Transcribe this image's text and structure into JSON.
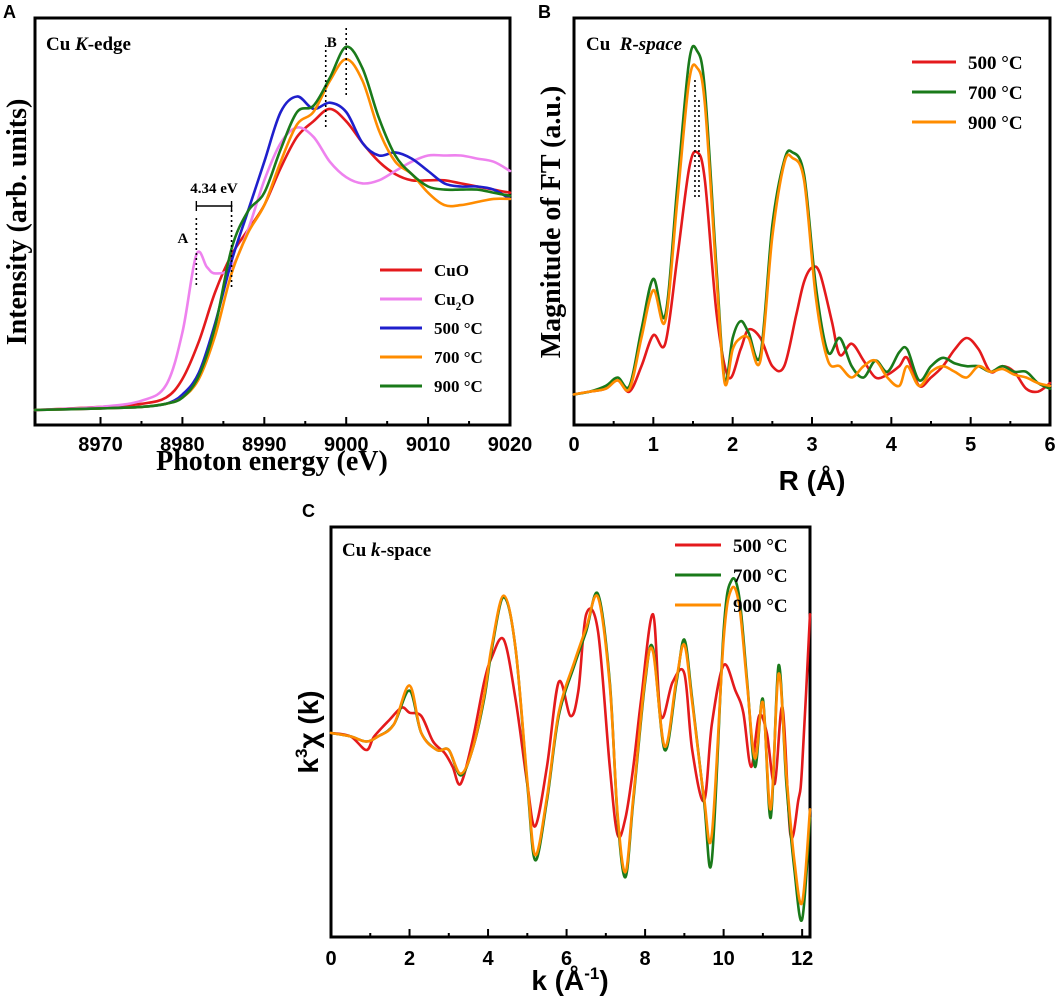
{
  "colors": {
    "red": "#e41a1c",
    "pink": "#ee82ee",
    "blue": "#1f1fcc",
    "orange": "#ff8c00",
    "green": "#1a7a1a"
  },
  "chart_data": [
    {
      "id": "A",
      "panel_label": "A",
      "type": "line",
      "title": "Cu K-edge",
      "title_prefix": "Cu ",
      "title_italic": "K",
      "title_suffix": "-edge",
      "xlabel": "Photon energy (eV)",
      "ylabel": "Intensity (arb. units)",
      "xlim": [
        8962,
        9020
      ],
      "ylim": [
        0,
        1.25
      ],
      "xticks": [
        8970,
        8980,
        8990,
        9000,
        9010,
        9020
      ],
      "xtick_labels": [
        "8970",
        "8980",
        "8990",
        "9000",
        "9010",
        "9020"
      ],
      "legend_position": "bottom-right",
      "annotations": {
        "gap_label": "4.34 eV",
        "peak_a_label": "A",
        "peak_b_label": "B",
        "peak_a_x": 8981.7,
        "edge_x": 8986.0,
        "peak_b_x1": 8997.5,
        "peak_b_x2": 9000.0
      },
      "series": [
        {
          "name": "CuO",
          "name_base": "CuO",
          "name_sub": "",
          "name_after": "",
          "color": "red",
          "x": [
            8962,
            8970,
            8975,
            8978,
            8980,
            8982,
            8984,
            8986,
            8988,
            8990,
            8992,
            8994,
            8996,
            8998,
            9000,
            9002,
            9004,
            9006,
            9008,
            9010,
            9012,
            9014,
            9016,
            9018,
            9020
          ],
          "y": [
            0.0,
            0.01,
            0.02,
            0.04,
            0.1,
            0.22,
            0.38,
            0.5,
            0.58,
            0.66,
            0.78,
            0.88,
            0.93,
            0.97,
            0.93,
            0.86,
            0.8,
            0.76,
            0.74,
            0.74,
            0.74,
            0.73,
            0.72,
            0.71,
            0.7
          ]
        },
        {
          "name": "Cu2O",
          "name_base": "Cu",
          "name_sub": "2",
          "name_after": "O",
          "color": "pink",
          "x": [
            8962,
            8970,
            8975,
            8978,
            8980,
            8981.7,
            8983,
            8984,
            8986,
            8988,
            8990,
            8992,
            8994,
            8996,
            8998,
            9000,
            9002,
            9004,
            9006,
            9008,
            9010,
            9012,
            9014,
            9016,
            9018,
            9020
          ],
          "y": [
            0.0,
            0.01,
            0.03,
            0.08,
            0.25,
            0.5,
            0.46,
            0.44,
            0.46,
            0.58,
            0.74,
            0.86,
            0.91,
            0.88,
            0.8,
            0.75,
            0.73,
            0.74,
            0.77,
            0.8,
            0.82,
            0.82,
            0.82,
            0.81,
            0.8,
            0.77
          ]
        },
        {
          "name": "500 °C",
          "name_base": "500 °C",
          "name_sub": "",
          "name_after": "",
          "color": "blue",
          "x": [
            8962,
            8970,
            8975,
            8978,
            8980,
            8982,
            8984,
            8986,
            8988,
            8990,
            8992,
            8994,
            8996,
            8998,
            9000,
            9002,
            9004,
            9006,
            9008,
            9010,
            9012,
            9014,
            9016,
            9018,
            9020
          ],
          "y": [
            0.0,
            0.005,
            0.01,
            0.02,
            0.05,
            0.12,
            0.28,
            0.48,
            0.64,
            0.8,
            0.96,
            1.01,
            0.97,
            0.99,
            0.96,
            0.86,
            0.82,
            0.83,
            0.81,
            0.77,
            0.73,
            0.72,
            0.72,
            0.71,
            0.68
          ]
        },
        {
          "name": "700 °C",
          "name_base": "700 °C",
          "name_sub": "",
          "name_after": "",
          "color": "orange",
          "x": [
            8962,
            8970,
            8975,
            8978,
            8980,
            8982,
            8984,
            8986,
            8988,
            8990,
            8992,
            8994,
            8996,
            8998,
            9000,
            9002,
            9004,
            9006,
            9008,
            9010,
            9012,
            9014,
            9016,
            9018,
            9020
          ],
          "y": [
            0.0,
            0.005,
            0.01,
            0.02,
            0.04,
            0.1,
            0.24,
            0.44,
            0.57,
            0.66,
            0.8,
            0.92,
            0.96,
            1.06,
            1.13,
            1.06,
            0.9,
            0.8,
            0.76,
            0.7,
            0.66,
            0.66,
            0.67,
            0.68,
            0.68
          ]
        },
        {
          "name": "900 °C",
          "name_base": "900 °C",
          "name_sub": "",
          "name_after": "",
          "color": "green",
          "x": [
            8962,
            8970,
            8975,
            8978,
            8980,
            8982,
            8984,
            8986,
            8988,
            8990,
            8992,
            8994,
            8996,
            8998,
            9000,
            9002,
            9004,
            9006,
            9008,
            9010,
            9012,
            9014,
            9016,
            9018,
            9020
          ],
          "y": [
            0.0,
            0.005,
            0.01,
            0.02,
            0.04,
            0.11,
            0.27,
            0.52,
            0.64,
            0.7,
            0.84,
            0.96,
            0.98,
            1.07,
            1.17,
            1.1,
            0.94,
            0.82,
            0.76,
            0.72,
            0.71,
            0.71,
            0.71,
            0.7,
            0.69
          ]
        }
      ]
    },
    {
      "id": "B",
      "panel_label": "B",
      "type": "line",
      "title": "Cu R-space",
      "title_prefix": "Cu  ",
      "title_italic": "R-space",
      "title_suffix": "",
      "xlabel": "R (Å)",
      "ylabel": "Magnitude of FT (a.u.)",
      "xlim": [
        0,
        6
      ],
      "ylim": [
        0,
        1.25
      ],
      "xticks": [
        0,
        1,
        2,
        3,
        4,
        5,
        6
      ],
      "xtick_labels": [
        "0",
        "1",
        "2",
        "3",
        "4",
        "5",
        "6"
      ],
      "legend_position": "top-right",
      "annotations": {
        "peak_x": 1.55
      },
      "series": [
        {
          "name": "500 °C",
          "name_base": "500 °C",
          "name_sub": "",
          "name_after": "",
          "color": "red",
          "x": [
            0,
            0.2,
            0.4,
            0.55,
            0.7,
            0.85,
            1.0,
            1.15,
            1.3,
            1.45,
            1.55,
            1.65,
            1.8,
            1.95,
            2.1,
            2.2,
            2.35,
            2.5,
            2.65,
            2.8,
            2.9,
            3.0,
            3.1,
            3.25,
            3.35,
            3.5,
            3.65,
            3.8,
            3.95,
            4.1,
            4.2,
            4.35,
            4.5,
            4.65,
            4.8,
            4.95,
            5.1,
            5.25,
            5.4,
            5.55,
            5.7,
            5.85,
            6.0
          ],
          "y": [
            0.02,
            0.03,
            0.04,
            0.07,
            0.03,
            0.12,
            0.23,
            0.2,
            0.5,
            0.82,
            0.88,
            0.78,
            0.3,
            0.08,
            0.18,
            0.25,
            0.22,
            0.12,
            0.12,
            0.3,
            0.42,
            0.47,
            0.45,
            0.28,
            0.16,
            0.2,
            0.14,
            0.08,
            0.09,
            0.12,
            0.15,
            0.05,
            0.08,
            0.12,
            0.18,
            0.22,
            0.18,
            0.1,
            0.12,
            0.1,
            0.04,
            0.03,
            0.06
          ]
        },
        {
          "name": "700 °C",
          "name_base": "700 °C",
          "name_sub": "",
          "name_after": "",
          "color": "green",
          "x": [
            0,
            0.2,
            0.4,
            0.55,
            0.7,
            0.85,
            1.0,
            1.15,
            1.3,
            1.45,
            1.55,
            1.65,
            1.8,
            1.9,
            2.0,
            2.1,
            2.2,
            2.35,
            2.5,
            2.65,
            2.75,
            2.9,
            3.05,
            3.2,
            3.35,
            3.5,
            3.65,
            3.8,
            3.95,
            4.1,
            4.2,
            4.35,
            4.5,
            4.65,
            4.8,
            4.95,
            5.1,
            5.25,
            5.4,
            5.55,
            5.7,
            5.85,
            6.0
          ],
          "y": [
            0.02,
            0.03,
            0.05,
            0.08,
            0.05,
            0.25,
            0.43,
            0.3,
            0.75,
            1.2,
            1.24,
            1.1,
            0.45,
            0.07,
            0.22,
            0.28,
            0.24,
            0.16,
            0.62,
            0.85,
            0.88,
            0.8,
            0.4,
            0.17,
            0.22,
            0.12,
            0.08,
            0.14,
            0.1,
            0.17,
            0.18,
            0.07,
            0.12,
            0.15,
            0.13,
            0.12,
            0.12,
            0.1,
            0.12,
            0.1,
            0.1,
            0.06,
            0.04
          ]
        },
        {
          "name": "900 °C",
          "name_base": "900 °C",
          "name_sub": "",
          "name_after": "",
          "color": "orange",
          "x": [
            0,
            0.2,
            0.4,
            0.55,
            0.7,
            0.85,
            1.0,
            1.15,
            1.3,
            1.45,
            1.55,
            1.65,
            1.8,
            1.9,
            2.0,
            2.1,
            2.2,
            2.35,
            2.5,
            2.65,
            2.75,
            2.9,
            3.05,
            3.2,
            3.35,
            3.5,
            3.65,
            3.8,
            3.95,
            4.1,
            4.2,
            4.35,
            4.5,
            4.65,
            4.8,
            4.95,
            5.1,
            5.25,
            5.4,
            5.55,
            5.7,
            5.85,
            6.0
          ],
          "y": [
            0.02,
            0.03,
            0.04,
            0.07,
            0.04,
            0.22,
            0.39,
            0.28,
            0.7,
            1.13,
            1.18,
            1.05,
            0.42,
            0.06,
            0.18,
            0.22,
            0.22,
            0.14,
            0.58,
            0.84,
            0.86,
            0.78,
            0.36,
            0.14,
            0.12,
            0.08,
            0.12,
            0.14,
            0.08,
            0.05,
            0.12,
            0.05,
            0.1,
            0.12,
            0.1,
            0.08,
            0.12,
            0.1,
            0.11,
            0.09,
            0.08,
            0.06,
            0.05
          ]
        }
      ]
    },
    {
      "id": "C",
      "panel_label": "C",
      "type": "line",
      "title": "Cu k-space",
      "title_prefix": "Cu ",
      "title_italic": "k",
      "title_suffix": "-space",
      "xlabel": "k (Å-1)",
      "xlabel_base": "k (Å",
      "xlabel_sup": "-1",
      "xlabel_after": ")",
      "ylabel": "k3χ (k)",
      "ylabel_base": "k",
      "ylabel_sup": "3",
      "ylabel_after": "χ (k)",
      "xlim": [
        0,
        12.2
      ],
      "ylim": [
        -1.15,
        1.15
      ],
      "xticks": [
        0,
        2,
        4,
        6,
        8,
        10,
        12
      ],
      "xtick_labels": [
        "0",
        "2",
        "4",
        "6",
        "8",
        "10",
        "12"
      ],
      "legend_position": "top-right",
      "series": [
        {
          "name": "500 °C",
          "name_base": "500 °C",
          "name_sub": "",
          "name_after": "",
          "color": "red",
          "x": [
            0,
            0.5,
            0.9,
            1.1,
            1.5,
            1.8,
            2.0,
            2.3,
            2.6,
            2.9,
            3.1,
            3.3,
            3.6,
            3.9,
            4.1,
            4.4,
            4.7,
            5.0,
            5.2,
            5.5,
            5.8,
            6.1,
            6.3,
            6.5,
            6.8,
            7.1,
            7.3,
            7.5,
            7.7,
            7.9,
            8.2,
            8.4,
            8.7,
            9.0,
            9.2,
            9.5,
            9.7,
            10.0,
            10.3,
            10.5,
            10.7,
            10.9,
            11.1,
            11.3,
            11.5,
            11.7,
            11.9,
            12.0,
            12.2
          ],
          "y": [
            0.0,
            -0.02,
            -0.1,
            -0.02,
            0.08,
            0.15,
            0.12,
            0.1,
            -0.05,
            -0.12,
            -0.2,
            -0.3,
            -0.05,
            0.3,
            0.45,
            0.55,
            0.2,
            -0.3,
            -0.55,
            -0.2,
            0.3,
            0.1,
            0.25,
            0.7,
            0.6,
            -0.2,
            -0.6,
            -0.5,
            -0.2,
            0.2,
            0.7,
            0.1,
            0.3,
            0.35,
            -0.1,
            -0.4,
            0.05,
            0.4,
            0.25,
            0.12,
            -0.2,
            0.1,
            0.0,
            -0.3,
            0.15,
            -0.6,
            -0.4,
            -0.2,
            0.7
          ]
        },
        {
          "name": "700 °C",
          "name_base": "700 °C",
          "name_sub": "",
          "name_after": "",
          "color": "green",
          "x": [
            0,
            0.5,
            0.9,
            1.2,
            1.6,
            2.0,
            2.3,
            2.7,
            3.0,
            3.3,
            3.6,
            3.9,
            4.1,
            4.4,
            4.7,
            5.0,
            5.2,
            5.5,
            5.8,
            6.2,
            6.5,
            6.8,
            7.1,
            7.3,
            7.5,
            7.7,
            8.0,
            8.2,
            8.5,
            8.8,
            9.0,
            9.2,
            9.5,
            9.7,
            10.0,
            10.2,
            10.4,
            10.6,
            10.8,
            11.0,
            11.2,
            11.4,
            11.6,
            11.8,
            12.0,
            12.2
          ],
          "y": [
            0.0,
            -0.02,
            -0.05,
            -0.02,
            0.05,
            0.25,
            0.0,
            -0.1,
            -0.1,
            -0.25,
            -0.1,
            0.2,
            0.5,
            0.8,
            0.5,
            -0.3,
            -0.75,
            -0.4,
            0.1,
            0.4,
            0.6,
            0.82,
            0.3,
            -0.5,
            -0.85,
            -0.4,
            0.3,
            0.5,
            -0.1,
            0.3,
            0.55,
            0.2,
            -0.4,
            -0.75,
            0.6,
            0.9,
            0.8,
            0.3,
            -0.2,
            0.2,
            -0.5,
            0.4,
            -0.3,
            -0.8,
            -1.1,
            -0.5
          ]
        },
        {
          "name": "900 °C",
          "name_base": "900 °C",
          "name_sub": "",
          "name_after": "",
          "color": "orange",
          "x": [
            0,
            0.5,
            0.9,
            1.2,
            1.6,
            2.0,
            2.3,
            2.7,
            3.0,
            3.3,
            3.6,
            3.9,
            4.1,
            4.4,
            4.7,
            5.0,
            5.2,
            5.5,
            5.8,
            6.2,
            6.5,
            6.8,
            7.1,
            7.3,
            7.5,
            7.7,
            8.0,
            8.2,
            8.5,
            8.8,
            9.0,
            9.2,
            9.5,
            9.7,
            10.0,
            10.2,
            10.4,
            10.6,
            10.8,
            11.0,
            11.2,
            11.4,
            11.6,
            11.8,
            12.0,
            12.2
          ],
          "y": [
            0.0,
            -0.02,
            -0.05,
            -0.02,
            0.05,
            0.28,
            0.0,
            -0.1,
            -0.1,
            -0.24,
            -0.1,
            0.22,
            0.52,
            0.81,
            0.5,
            -0.28,
            -0.72,
            -0.38,
            0.12,
            0.42,
            0.62,
            0.8,
            0.28,
            -0.48,
            -0.82,
            -0.38,
            0.32,
            0.48,
            -0.08,
            0.32,
            0.52,
            0.18,
            -0.38,
            -0.6,
            0.55,
            0.85,
            0.75,
            0.28,
            -0.15,
            0.18,
            -0.45,
            0.35,
            -0.25,
            -0.75,
            -1.0,
            -0.45
          ]
        }
      ]
    }
  ]
}
